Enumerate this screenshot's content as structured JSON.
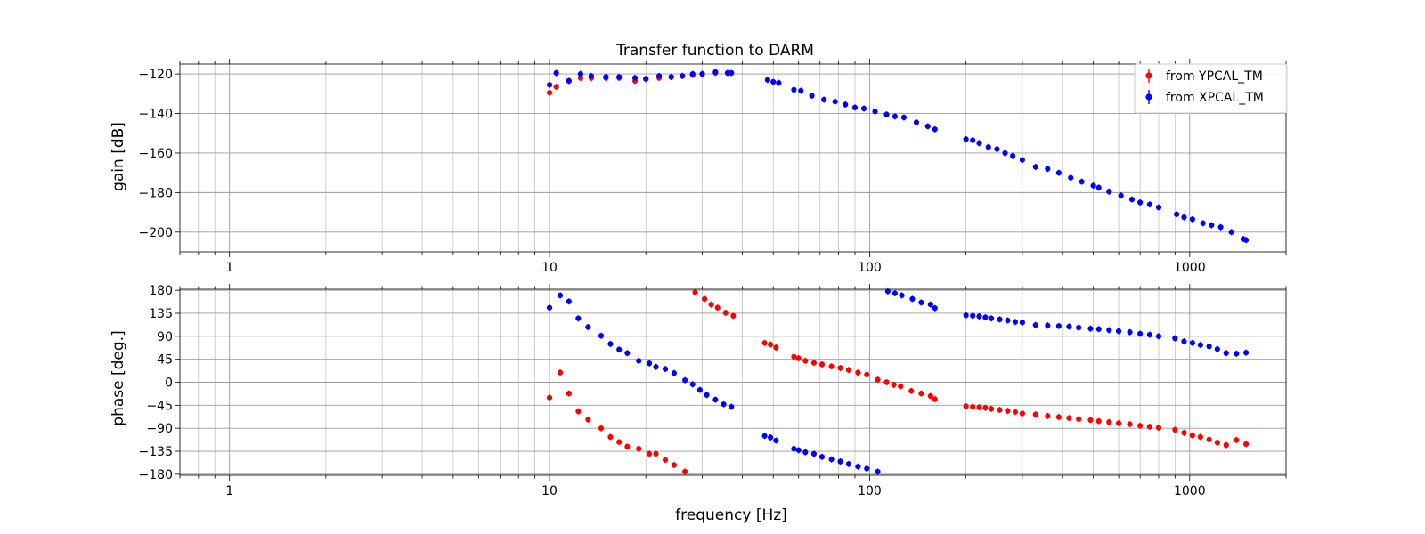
{
  "chart_data": {
    "type": "scatter",
    "title": "Transfer function to DARM",
    "xlabel": "frequency [Hz]",
    "xscale": "log",
    "xlim": [
      0.7,
      2000
    ],
    "xticks": [
      1,
      10,
      100,
      1000
    ],
    "xticklabels": [
      "1",
      "10",
      "100",
      "1000"
    ],
    "grid": true,
    "legend_position": "top-right",
    "panels": [
      {
        "id": "gain",
        "ylabel": "gain [dB]",
        "ylim": [
          -210,
          -115
        ],
        "yticks": [
          -120,
          -140,
          -160,
          -180,
          -200
        ],
        "yticklabels": [
          "−120",
          "−140",
          "−160",
          "−180",
          "−200"
        ],
        "series": [
          {
            "name": "from YPCAL_TM",
            "color": "#ff0000",
            "x": [
              10,
              10.5,
              11.5,
              12.5,
              13.5,
              15,
              16.5,
              18.5,
              20,
              22,
              24,
              26,
              28,
              30,
              33,
              36,
              37
            ],
            "y": [
              -129.5,
              -126.5,
              -123.5,
              -122,
              -122,
              -122,
              -122,
              -123.5,
              -122.5,
              -122,
              -121.5,
              -121,
              -120.5,
              -120,
              -119.5,
              -119.5,
              -119.5
            ]
          },
          {
            "name": "from XPCAL_TM",
            "color": "#0000ff",
            "x": [
              10,
              10.5,
              11.5,
              12.5,
              13.5,
              15,
              16.5,
              18.5,
              20,
              22,
              24,
              26,
              28,
              30,
              33,
              36,
              37,
              48,
              50,
              52,
              58,
              61,
              66,
              72,
              78,
              84,
              90,
              96,
              104,
              113,
              120,
              128,
              140,
              152,
              160,
              200,
              210,
              220,
              235,
              250,
              265,
              280,
              300,
              330,
              360,
              390,
              425,
              460,
              500,
              520,
              560,
              610,
              660,
              700,
              750,
              800,
              910,
              960,
              1020,
              1100,
              1170,
              1250,
              1350,
              1470,
              1500
            ],
            "y": [
              -125.5,
              -119.5,
              -123.5,
              -120,
              -121,
              -121.5,
              -121.5,
              -122,
              -122.5,
              -121,
              -121.5,
              -121,
              -120,
              -120,
              -119,
              -119.5,
              -119.5,
              -123,
              -124,
              -124.5,
              -128,
              -128.5,
              -131,
              -133,
              -134,
              -135.5,
              -137,
              -137.5,
              -139,
              -140.5,
              -141.5,
              -142,
              -144.5,
              -146.5,
              -148,
              -153,
              -153.5,
              -155,
              -157,
              -158,
              -160,
              -161.5,
              -163.5,
              -167,
              -168,
              -170,
              -172.5,
              -174.5,
              -176.5,
              -177.5,
              -179.5,
              -181.5,
              -183.5,
              -185,
              -186,
              -187.5,
              -191,
              -192.5,
              -193.5,
              -195.5,
              -196.5,
              -197.5,
              -200,
              -203.5,
              -204
            ]
          }
        ]
      },
      {
        "id": "phase",
        "ylabel": "phase [deg.]",
        "ylim": [
          -182,
          182
        ],
        "yticks": [
          180,
          135,
          90,
          45,
          0,
          -45,
          -90,
          -135,
          -180
        ],
        "yticklabels": [
          "180",
          "135",
          "90",
          "45",
          "0",
          "−45",
          "−90",
          "−135",
          "−180"
        ],
        "series": [
          {
            "name": "from YPCAL_TM",
            "color": "#ff0000",
            "segments": [
              {
                "x": [
                  10,
                  10.8,
                  11.5,
                  12.3,
                  13.2,
                  14.5,
                  15.5,
                  16.5,
                  17.5,
                  19,
                  20.5,
                  21.5,
                  23,
                  24.5,
                  26.5
                ],
                "y": [
                  -30,
                  19,
                  -22,
                  -57,
                  -73,
                  -90,
                  -107,
                  -117,
                  -126,
                  -130,
                  -140,
                  -140,
                  -152,
                  -162,
                  -175
                ]
              },
              {
                "x": [
                  28.5,
                  30.5,
                  32,
                  33.5,
                  35.5,
                  37.5
                ],
                "y": [
                  176,
                  163,
                  152,
                  146,
                  136,
                  130
                ]
              },
              {
                "x": [
                  47,
                  49,
                  51,
                  58,
                  60,
                  63,
                  67,
                  71,
                  76,
                  81,
                  86,
                  92,
                  98,
                  106,
                  113,
                  119,
                  125,
                  135,
                  145,
                  155,
                  160
                ],
                "y": [
                  77,
                  74,
                  68,
                  50,
                  47,
                  42,
                  38,
                  35,
                  31,
                  28,
                  24,
                  19,
                  15,
                  5,
                  0,
                  -5,
                  -8,
                  -17,
                  -22,
                  -27,
                  -33
                ]
              },
              {
                "x": [
                  200,
                  210,
                  220,
                  230,
                  240,
                  255,
                  270,
                  285,
                  300,
                  330,
                  360,
                  390,
                  420,
                  450,
                  490,
                  520,
                  560,
                  600,
                  650,
                  700,
                  750,
                  800,
                  900,
                  960,
                  1020,
                  1080,
                  1150,
                  1220,
                  1300,
                  1400,
                  1500
                ],
                "y": [
                  -47,
                  -48,
                  -49,
                  -50,
                  -52,
                  -54,
                  -56,
                  -58,
                  -61,
                  -63,
                  -66,
                  -68,
                  -70,
                  -72,
                  -74,
                  -76,
                  -78,
                  -80,
                  -82,
                  -85,
                  -87,
                  -89,
                  -93,
                  -99,
                  -104,
                  -107,
                  -112,
                  -118,
                  -123,
                  -113,
                  -121
                ]
              }
            ]
          },
          {
            "name": "from XPCAL_TM",
            "color": "#0000ff",
            "segments": [
              {
                "x": [
                  10,
                  10.8,
                  11.5,
                  12.3,
                  13.2,
                  14.5,
                  15.5,
                  16.5,
                  17.5,
                  19,
                  20.5,
                  21.5,
                  23,
                  24.5,
                  26.5,
                  28,
                  29.5,
                  31,
                  33,
                  35,
                  37
                ],
                "y": [
                  146,
                  170,
                  158,
                  125,
                  108,
                  91,
                  75,
                  64,
                  57,
                  42,
                  37,
                  30,
                  26,
                  18,
                  4,
                  -4,
                  -15,
                  -25,
                  -34,
                  -43,
                  -48
                ]
              },
              {
                "x": [
                  47,
                  49,
                  51,
                  58,
                  60,
                  63,
                  67,
                  71,
                  76,
                  81,
                  86,
                  92,
                  98,
                  106
                ],
                "y": [
                  -105,
                  -108,
                  -114,
                  -130,
                  -133,
                  -137,
                  -140,
                  -146,
                  -151,
                  -155,
                  -160,
                  -165,
                  -169,
                  -175
                ]
              },
              {
                "x": [
                  114,
                  120,
                  126,
                  136,
                  145,
                  155,
                  160
                ],
                "y": [
                  178,
                  174,
                  170,
                  163,
                  156,
                  152,
                  145
                ]
              },
              {
                "x": [
                  200,
                  210,
                  220,
                  230,
                  240,
                  255,
                  270,
                  285,
                  300,
                  330,
                  360,
                  390,
                  420,
                  450,
                  490,
                  520,
                  560,
                  600,
                  650,
                  700,
                  750,
                  800,
                  900,
                  960,
                  1020,
                  1080,
                  1150,
                  1220,
                  1300,
                  1400,
                  1500
                ],
                "y": [
                  131,
                  130,
                  129,
                  127,
                  125,
                  123,
                  121,
                  118,
                  117,
                  112,
                  111,
                  110,
                  109,
                  107,
                  105,
                  104,
                  102,
                  100,
                  98,
                  95,
                  93,
                  90,
                  86,
                  80,
                  77,
                  73,
                  70,
                  65,
                  57,
                  56,
                  58
                ]
              }
            ]
          }
        ]
      }
    ]
  }
}
